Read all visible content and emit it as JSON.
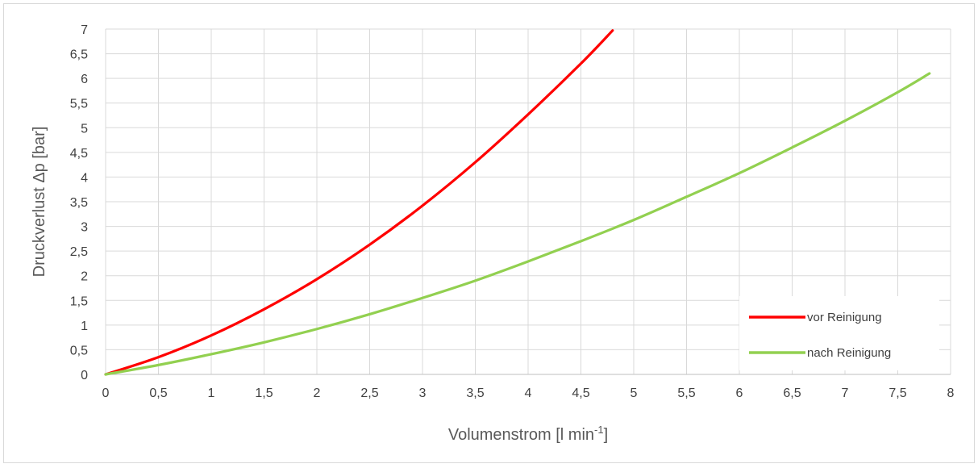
{
  "chart_data": {
    "type": "line",
    "title": "",
    "xlabel": "Volumenstrom  [l min",
    "xlabel_sup": "-1",
    "xlabel_end": "]",
    "ylabel": "Druckverlust Δp [bar]",
    "xlim": [
      0,
      8
    ],
    "ylim": [
      0,
      7
    ],
    "x_ticks": [
      0,
      0.5,
      1,
      1.5,
      2,
      2.5,
      3,
      3.5,
      4,
      4.5,
      5,
      5.5,
      6,
      6.5,
      7,
      7.5,
      8
    ],
    "x_tick_labels": [
      "0",
      "0,5",
      "1",
      "1,5",
      "2",
      "2,5",
      "3",
      "3,5",
      "4",
      "4,5",
      "5",
      "5,5",
      "6",
      "6,5",
      "7",
      "7,5",
      "8"
    ],
    "y_ticks": [
      0,
      0.5,
      1,
      1.5,
      2,
      2.5,
      3,
      3.5,
      4,
      4.5,
      5,
      5.5,
      6,
      6.5,
      7
    ],
    "y_tick_labels": [
      "0",
      "0,5",
      "1",
      "1,5",
      "2",
      "2,5",
      "3",
      "3,5",
      "4",
      "4,5",
      "5",
      "5,5",
      "6",
      "6,5",
      "7"
    ],
    "grid": true,
    "legend_position": "bottom-right",
    "series": [
      {
        "name": "vor Reinigung",
        "color": "#ff0000",
        "x": [
          0,
          0.5,
          1,
          1.5,
          2,
          2.5,
          3,
          3.5,
          4,
          4.5,
          4.8
        ],
        "y": [
          0,
          0.35,
          0.79,
          1.32,
          1.93,
          2.63,
          3.42,
          4.3,
          5.27,
          6.3,
          6.97
        ]
      },
      {
        "name": "nach Reinigung",
        "color": "#92d050",
        "x": [
          0,
          0.5,
          1,
          1.5,
          2,
          2.5,
          3,
          3.5,
          4,
          4.5,
          5,
          5.5,
          6,
          6.5,
          7,
          7.5,
          7.8
        ],
        "y": [
          0,
          0.19,
          0.41,
          0.65,
          0.92,
          1.22,
          1.55,
          1.9,
          2.29,
          2.7,
          3.13,
          3.6,
          4.08,
          4.6,
          5.14,
          5.72,
          6.1
        ]
      }
    ]
  }
}
